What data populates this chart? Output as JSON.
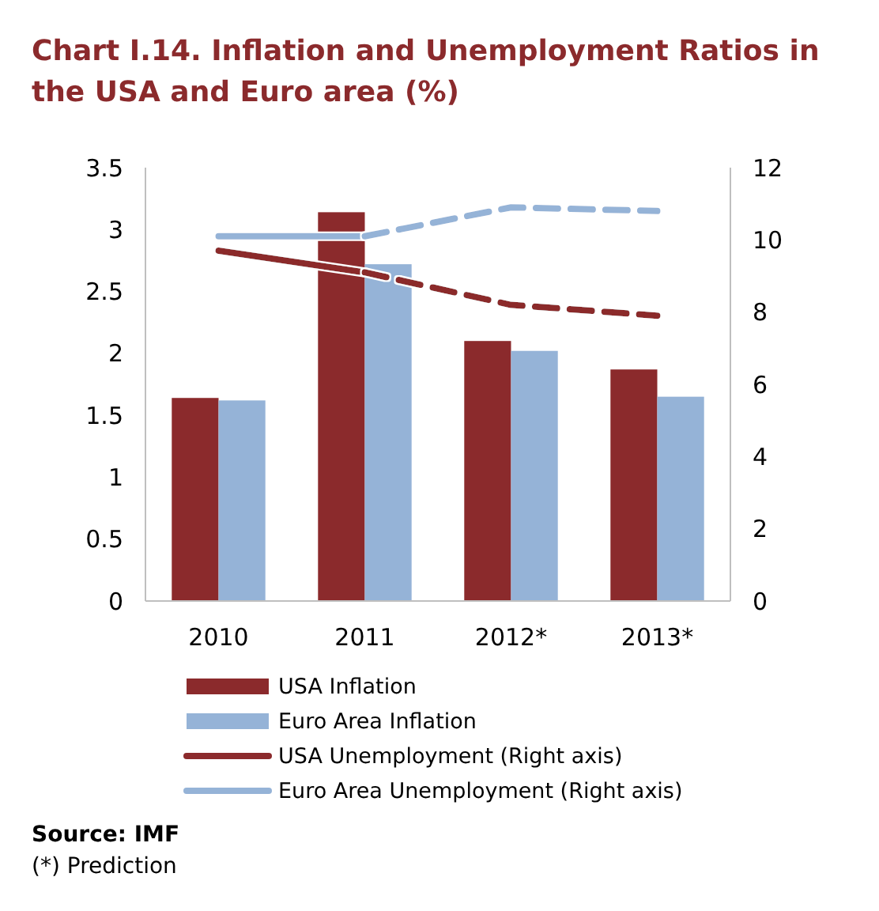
{
  "chart_data": {
    "type": "bar",
    "title": "Chart I.14. Inflation and Unemployment Ratios in the USA and Euro area (%)",
    "categories": [
      "2010",
      "2011",
      "2012*",
      "2013*"
    ],
    "series": [
      {
        "name": "USA Inflation",
        "color": "#8b2a2c",
        "values": [
          1.64,
          3.14,
          2.1,
          1.87
        ]
      },
      {
        "name": "Euro Area Inflation",
        "color": "#95b3d7",
        "values": [
          1.62,
          2.72,
          2.02,
          1.65
        ]
      },
      {
        "name": "USA Unemployment (Right axis)",
        "type": "line",
        "axis": "y2",
        "color": "#8b2a2c",
        "line_style": "solid",
        "values": [
          9.7,
          9.1,
          null,
          null
        ]
      },
      {
        "name": "Euro Area Unemployment (Right axis)",
        "type": "line",
        "axis": "y2",
        "color": "#95b3d7",
        "line_style": "solid",
        "values": [
          10.1,
          10.1,
          null,
          null
        ]
      },
      {
        "type": "line",
        "axis": "y2",
        "color": "#8b2a2c",
        "line_style": "dashed",
        "values": [
          null,
          9.1,
          8.2,
          7.9
        ]
      },
      {
        "type": "line",
        "axis": "y2",
        "color": "#95b3d7",
        "line_style": "dashed",
        "values": [
          null,
          10.1,
          10.9,
          10.8
        ]
      }
    ],
    "ylim": [
      0,
      3.5
    ],
    "yticks": [
      0,
      0.5,
      1,
      1.5,
      2,
      2.5,
      3,
      3.5
    ],
    "y2lim": [
      0,
      12
    ],
    "y2ticks": [
      0,
      2,
      4,
      6,
      8,
      10,
      12
    ],
    "grid": false,
    "legend": "bottom",
    "annotations": [
      "Source: IMF",
      "(*) Prediction"
    ]
  }
}
